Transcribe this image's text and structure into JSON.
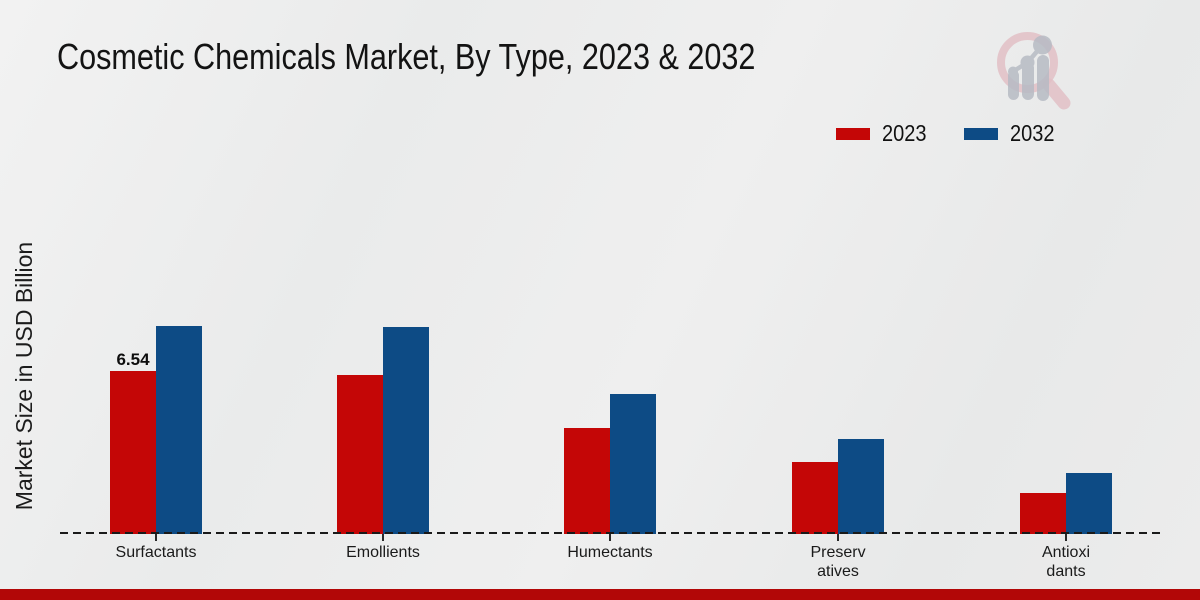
{
  "title": "Cosmetic Chemicals Market, By Type, 2023 & 2032",
  "ylabel": "Market Size in USD Billion",
  "legend": [
    {
      "label": "2023",
      "color": "#c40606"
    },
    {
      "label": "2032",
      "color": "#0d4b85"
    }
  ],
  "colors": {
    "bar_2023": "#c40606",
    "bar_2032": "#0d4b85",
    "bottom_band": "#b20707",
    "axis": "#1a1a1a",
    "background": "#ebecec"
  },
  "logo": {
    "name": "magnifier-bar-chart-logo"
  },
  "chart_data": {
    "type": "bar",
    "title": "Cosmetic Chemicals Market, By Type, 2023 & 2032",
    "xlabel": "",
    "ylabel": "Market Size in USD Billion",
    "categories": [
      "Surfactants",
      "Emollients",
      "Humectants",
      "Preservatives",
      "Antioxidants"
    ],
    "category_label_lines": [
      [
        "Surfactants"
      ],
      [
        "Emollients"
      ],
      [
        "Humectants"
      ],
      [
        "Preserv",
        "atives"
      ],
      [
        "Antioxi",
        "dants"
      ]
    ],
    "series": [
      {
        "name": "2023",
        "color": "#c40606",
        "values": [
          6.54,
          6.4,
          4.25,
          2.9,
          1.65
        ]
      },
      {
        "name": "2032",
        "color": "#0d4b85",
        "values": [
          8.35,
          8.3,
          5.6,
          3.8,
          2.45
        ]
      }
    ],
    "data_labels": [
      {
        "series": "2023",
        "category": "Surfactants",
        "text": "6.54"
      }
    ],
    "unit": "USD Billion",
    "grid": false,
    "baseline_style": "dashed",
    "legend_position": "top-right",
    "ylim": [
      0,
      9
    ]
  }
}
